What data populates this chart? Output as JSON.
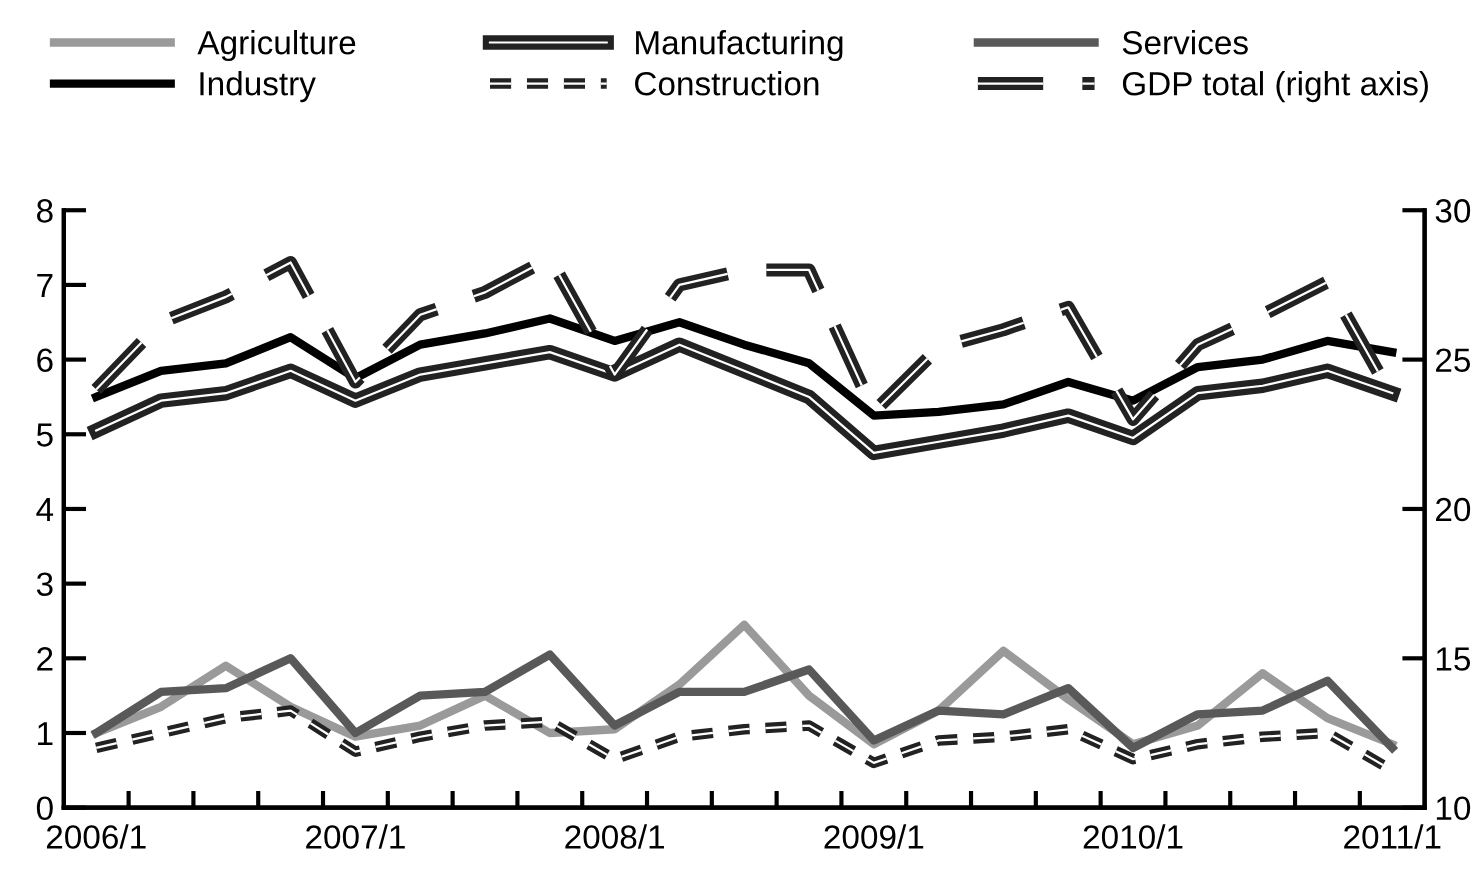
{
  "chart_data": {
    "type": "line",
    "categories": [
      "2006/1",
      null,
      null,
      null,
      "2007/1",
      null,
      null,
      null,
      "2008/1",
      null,
      null,
      null,
      "2009/1",
      null,
      null,
      null,
      "2010/1",
      null,
      null,
      null,
      "2011/1"
    ],
    "series": [
      {
        "name": "Agriculture",
        "color": "#9a9a9a",
        "line_style": "solid",
        "values": [
          1.0,
          1.35,
          1.9,
          1.35,
          0.95,
          1.1,
          1.5,
          1.0,
          1.05,
          1.65,
          2.45,
          1.5,
          0.85,
          1.3,
          2.1,
          1.45,
          0.85,
          1.1,
          1.8,
          1.2,
          0.85
        ]
      },
      {
        "name": "Industry",
        "color": "#000000",
        "line_style": "solid",
        "values": [
          5.5,
          5.85,
          5.95,
          6.3,
          5.75,
          6.2,
          6.35,
          6.55,
          6.25,
          6.5,
          6.2,
          5.95,
          5.25,
          5.3,
          5.4,
          5.7,
          5.45,
          5.9,
          6.0,
          6.25,
          6.1
        ]
      },
      {
        "name": "Manufacturing",
        "color": "#222222",
        "line_style": "solid",
        "values": [
          5.05,
          5.45,
          5.55,
          5.85,
          5.45,
          5.8,
          5.95,
          6.1,
          5.8,
          6.2,
          5.85,
          5.5,
          4.75,
          4.9,
          5.05,
          5.25,
          4.95,
          5.55,
          5.65,
          5.85,
          5.55
        ]
      },
      {
        "name": "Construction",
        "color": "#222222",
        "line_style": "dotted",
        "values": [
          0.8,
          1.0,
          1.2,
          1.3,
          0.75,
          0.95,
          1.1,
          1.15,
          0.65,
          0.95,
          1.05,
          1.1,
          0.6,
          0.9,
          0.95,
          1.05,
          0.65,
          0.85,
          0.95,
          1.0,
          0.5
        ]
      },
      {
        "name": "Services",
        "color": "#595959",
        "line_style": "solid",
        "values": [
          1.0,
          1.55,
          1.6,
          2.0,
          1.0,
          1.5,
          1.55,
          2.05,
          1.1,
          1.55,
          1.55,
          1.85,
          0.9,
          1.3,
          1.25,
          1.6,
          0.8,
          1.25,
          1.3,
          1.7,
          0.8
        ]
      },
      {
        "name": "GDP total (right axis)",
        "color": "#222222",
        "line_style": "dashed",
        "axis": "y2",
        "values": [
          24,
          26.25,
          27.1,
          28.25,
          24.25,
          26.5,
          27.25,
          28.4,
          24.5,
          27.5,
          28,
          28,
          23.25,
          25.4,
          26,
          26.75,
          23,
          25.5,
          26.5,
          27.6,
          23.75
        ]
      }
    ],
    "ylim": [
      0,
      8
    ],
    "yticks": [
      0,
      1,
      2,
      3,
      4,
      5,
      6,
      7,
      8
    ],
    "y2lim": [
      10,
      30
    ],
    "y2ticks": [
      10,
      15,
      20,
      25,
      30
    ],
    "grid": false,
    "legend": "top",
    "marker": "none"
  }
}
